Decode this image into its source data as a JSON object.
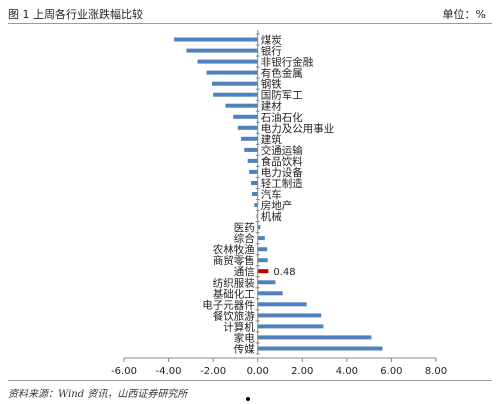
{
  "header": {
    "title": "图 1 上周各行业涨跌幅比较",
    "unit": "单位：%"
  },
  "source": "资料来源：Wind 资讯，山西证券研究所",
  "colors": {
    "bar": "#4f81bd",
    "highlight": "#c00000",
    "axis": "#888888"
  },
  "chart_data": {
    "type": "bar",
    "orientation": "horizontal",
    "title": "上周各行业涨跌幅比较",
    "xlabel": "",
    "ylabel": "",
    "xlim": [
      -6,
      8
    ],
    "xticks": [
      "-6.00",
      "-4.00",
      "-2.00",
      "0.00",
      "2.00",
      "4.00",
      "6.00",
      "8.00"
    ],
    "categories": [
      "煤炭",
      "银行",
      "非银行金融",
      "有色金属",
      "钢铁",
      "国防军工",
      "建材",
      "石油石化",
      "电力及公用事业",
      "建筑",
      "交通运输",
      "食品饮料",
      "电力设备",
      "轻工制造",
      "汽车",
      "房地产",
      "机械",
      "医药",
      "综合",
      "农林牧渔",
      "商贸零售",
      "通信",
      "纺织服装",
      "基础化工",
      "电子元器件",
      "餐饮旅游",
      "计算机",
      "家电",
      "传媒"
    ],
    "values": [
      -3.75,
      -3.2,
      -2.7,
      -2.3,
      -2.05,
      -2.0,
      -1.45,
      -1.1,
      -0.9,
      -0.75,
      -0.6,
      -0.45,
      -0.38,
      -0.3,
      -0.25,
      -0.15,
      -0.05,
      0.12,
      0.32,
      0.42,
      0.45,
      0.48,
      0.8,
      1.12,
      2.2,
      2.85,
      2.95,
      5.1,
      5.6
    ],
    "highlight": {
      "category": "通信",
      "label": "0.48"
    },
    "grid": false,
    "legend": "none"
  }
}
